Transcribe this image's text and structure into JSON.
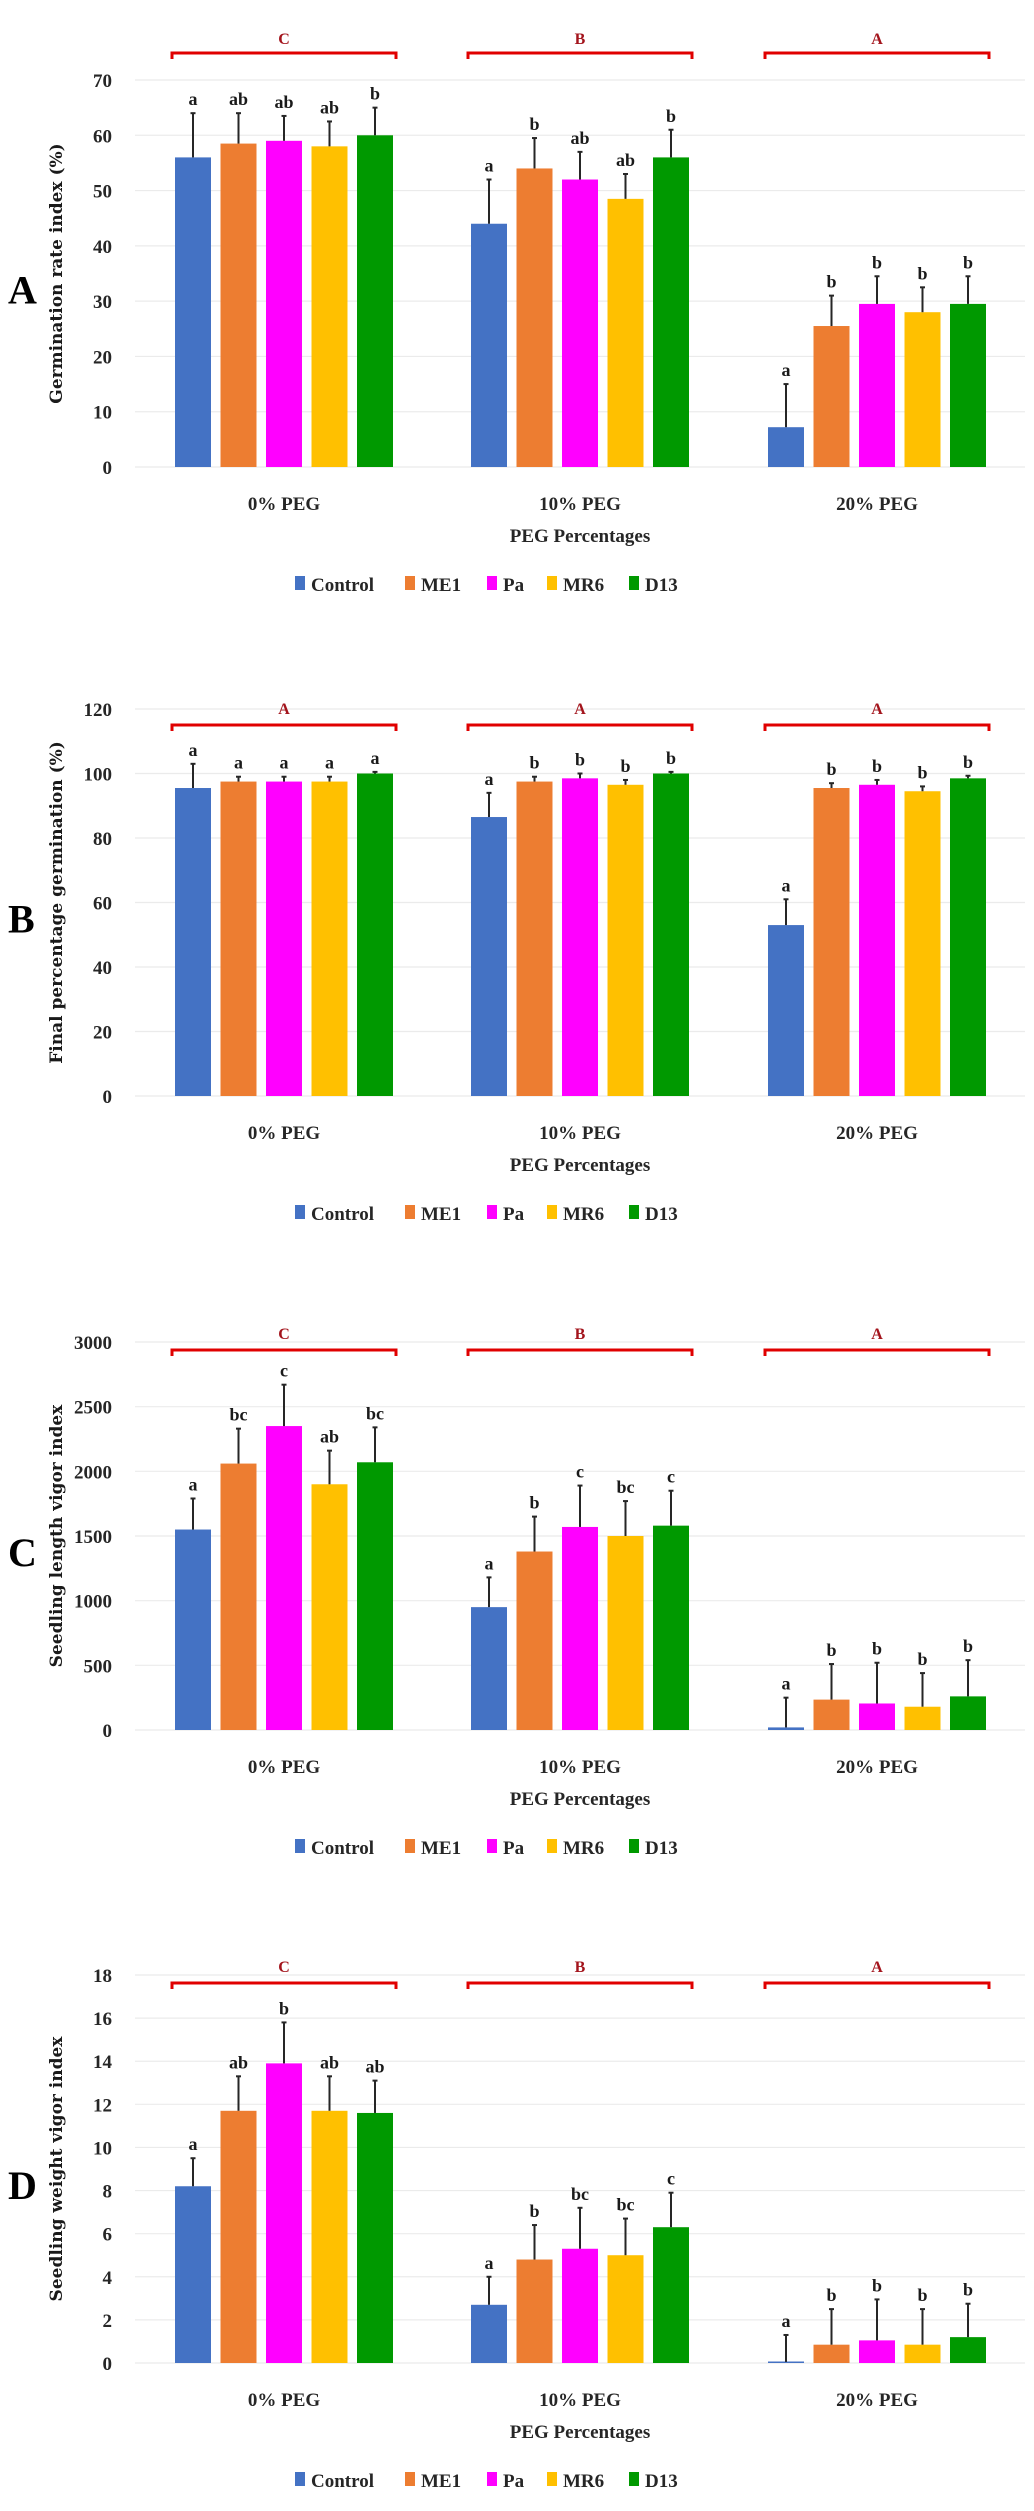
{
  "chart_data": [
    {
      "type": "bar",
      "panel_label": "A",
      "title": "",
      "xlabel": "PEG Percentages",
      "ylabel": "Germination  rate index (%)",
      "ylim": [
        0,
        70
      ],
      "yticks": [
        0,
        10,
        20,
        30,
        40,
        50,
        60,
        70
      ],
      "grid": true,
      "legend_position": "bottom",
      "categories": [
        "0% PEG",
        "10% PEG",
        "20% PEG"
      ],
      "group_letters": [
        "C",
        "B",
        "A"
      ],
      "series": [
        {
          "name": "Control",
          "color": "#4472C4",
          "values": [
            56,
            44,
            7.2
          ],
          "errors": [
            8,
            8,
            7.8
          ],
          "letters": [
            "a",
            "a",
            "a"
          ]
        },
        {
          "name": "ME1",
          "color": "#ED7D31",
          "values": [
            58.5,
            54,
            25.5
          ],
          "errors": [
            5.5,
            5.5,
            5.5
          ],
          "letters": [
            "ab",
            "b",
            "b"
          ]
        },
        {
          "name": "Pa",
          "color": "#FF00FF",
          "values": [
            59,
            52,
            29.5
          ],
          "errors": [
            4.5,
            5,
            5
          ],
          "letters": [
            "ab",
            "ab",
            "b"
          ]
        },
        {
          "name": "MR6",
          "color": "#FFC000",
          "values": [
            58,
            48.5,
            28
          ],
          "errors": [
            4.5,
            4.5,
            4.5
          ],
          "letters": [
            "ab",
            "ab",
            "b"
          ]
        },
        {
          "name": "D13",
          "color": "#009900",
          "values": [
            60,
            56,
            29.5
          ],
          "errors": [
            5,
            5,
            5
          ],
          "letters": [
            "b",
            "b",
            "b"
          ]
        }
      ]
    },
    {
      "type": "bar",
      "panel_label": "B",
      "title": "",
      "xlabel": "PEG Percentages",
      "ylabel": "Final percentage germination (%)",
      "ylim": [
        0,
        120
      ],
      "yticks": [
        0,
        20,
        40,
        60,
        80,
        100,
        120
      ],
      "grid": true,
      "legend_position": "bottom",
      "categories": [
        "0% PEG",
        "10% PEG",
        "20% PEG"
      ],
      "group_letters": [
        "A",
        "A",
        "A"
      ],
      "series": [
        {
          "name": "Control",
          "color": "#4472C4",
          "values": [
            95.5,
            86.5,
            53
          ],
          "errors": [
            7.5,
            7.5,
            8
          ],
          "letters": [
            "a",
            "a",
            "a"
          ]
        },
        {
          "name": "ME1",
          "color": "#ED7D31",
          "values": [
            97.5,
            97.5,
            95.5
          ],
          "errors": [
            1.5,
            1.5,
            1.5
          ],
          "letters": [
            "a",
            "b",
            "b"
          ]
        },
        {
          "name": "Pa",
          "color": "#FF00FF",
          "values": [
            97.5,
            98.5,
            96.5
          ],
          "errors": [
            1.5,
            1.5,
            1.5
          ],
          "letters": [
            "a",
            "b",
            "b"
          ]
        },
        {
          "name": "MR6",
          "color": "#FFC000",
          "values": [
            97.5,
            96.5,
            94.5
          ],
          "errors": [
            1.5,
            1.5,
            1.5
          ],
          "letters": [
            "a",
            "b",
            "b"
          ]
        },
        {
          "name": "D13",
          "color": "#009900",
          "values": [
            100,
            100,
            98.5
          ],
          "errors": [
            0.5,
            0.5,
            0.8
          ],
          "letters": [
            "a",
            "b",
            "b"
          ]
        }
      ]
    },
    {
      "type": "bar",
      "panel_label": "C",
      "title": "",
      "xlabel": "PEG Percentages",
      "ylabel": "Seedling length vigor index",
      "ylim": [
        0,
        3000
      ],
      "yticks": [
        0,
        500,
        1000,
        1500,
        2000,
        2500,
        3000
      ],
      "grid": true,
      "legend_position": "bottom",
      "categories": [
        "0% PEG",
        "10% PEG",
        "20% PEG"
      ],
      "group_letters": [
        "C",
        "B",
        "A"
      ],
      "series": [
        {
          "name": "Control",
          "color": "#4472C4",
          "values": [
            1550,
            950,
            20
          ],
          "errors": [
            240,
            230,
            230
          ],
          "letters": [
            "a",
            "a",
            "a"
          ]
        },
        {
          "name": "ME1",
          "color": "#ED7D31",
          "values": [
            2060,
            1380,
            235
          ],
          "errors": [
            270,
            270,
            275
          ],
          "letters": [
            "bc",
            "b",
            "b"
          ]
        },
        {
          "name": "Pa",
          "color": "#FF00FF",
          "values": [
            2350,
            1570,
            205
          ],
          "errors": [
            320,
            320,
            315
          ],
          "letters": [
            "c",
            "c",
            "b"
          ]
        },
        {
          "name": "MR6",
          "color": "#FFC000",
          "values": [
            1900,
            1500,
            180
          ],
          "errors": [
            260,
            270,
            260
          ],
          "letters": [
            "ab",
            "bc",
            "b"
          ]
        },
        {
          "name": "D13",
          "color": "#009900",
          "values": [
            2070,
            1580,
            260
          ],
          "errors": [
            270,
            270,
            280
          ],
          "letters": [
            "bc",
            "c",
            "b"
          ]
        }
      ]
    },
    {
      "type": "bar",
      "panel_label": "D",
      "title": "",
      "xlabel": "PEG Percentages",
      "ylabel": "Seedling weight vigor index",
      "ylim": [
        0,
        18
      ],
      "yticks": [
        0,
        2,
        4,
        6,
        8,
        10,
        12,
        14,
        16,
        18
      ],
      "grid": true,
      "legend_position": "bottom",
      "categories": [
        "0% PEG",
        "10% PEG",
        "20% PEG"
      ],
      "group_letters": [
        "C",
        "B",
        "A"
      ],
      "series": [
        {
          "name": "Control",
          "color": "#4472C4",
          "values": [
            8.2,
            2.7,
            0.05
          ],
          "errors": [
            1.3,
            1.3,
            1.25
          ],
          "letters": [
            "a",
            "a",
            "a"
          ]
        },
        {
          "name": "ME1",
          "color": "#ED7D31",
          "values": [
            11.7,
            4.8,
            0.85
          ],
          "errors": [
            1.6,
            1.6,
            1.65
          ],
          "letters": [
            "ab",
            "b",
            "b"
          ]
        },
        {
          "name": "Pa",
          "color": "#FF00FF",
          "values": [
            13.9,
            5.3,
            1.05
          ],
          "errors": [
            1.9,
            1.9,
            1.9
          ],
          "letters": [
            "b",
            "bc",
            "b"
          ]
        },
        {
          "name": "MR6",
          "color": "#FFC000",
          "values": [
            11.7,
            5.0,
            0.85
          ],
          "errors": [
            1.6,
            1.7,
            1.65
          ],
          "letters": [
            "ab",
            "bc",
            "b"
          ]
        },
        {
          "name": "D13",
          "color": "#009900",
          "values": [
            11.6,
            6.3,
            1.2
          ],
          "errors": [
            1.5,
            1.6,
            1.55
          ],
          "letters": [
            "ab",
            "c",
            "b"
          ]
        }
      ]
    }
  ],
  "colors": {
    "group_bracket": "#E00000",
    "group_letter": "#A3141C",
    "gridline": "#EBEBEB",
    "error_bar": "#262626"
  }
}
